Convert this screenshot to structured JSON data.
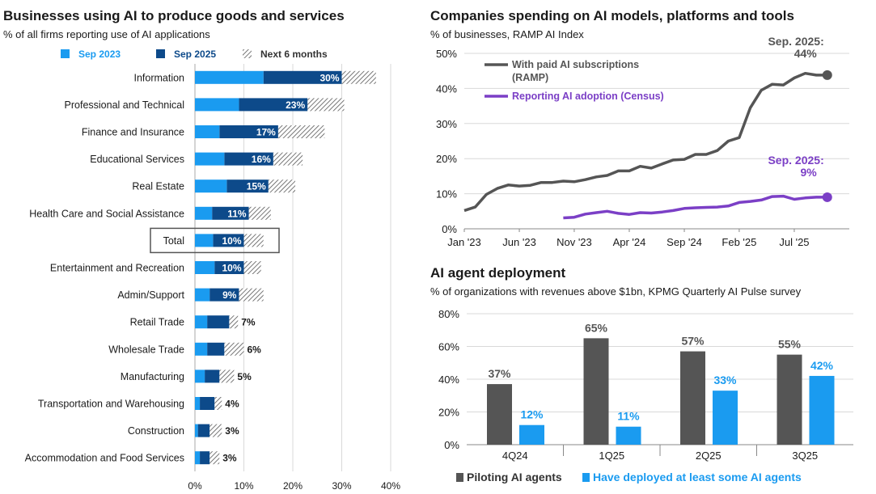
{
  "colors": {
    "sep2023": "#1a9bf0",
    "sep2025": "#0d4a8a",
    "next6": "#555555",
    "ramp": "#555555",
    "census": "#7b3fc6",
    "piloting": "#555555",
    "deployed": "#1a9bf0",
    "grid": "#d9d9d9",
    "total_box": "#555555"
  },
  "left": {
    "title": "Businesses using AI to produce goods and services",
    "subtitle": "% of all firms reporting use of AI applications"
  },
  "right_top": {
    "title": "Companies spending on AI models, platforms and tools",
    "subtitle": "% of businesses, RAMP AI Index"
  },
  "right_bottom": {
    "title": "AI agent deployment",
    "subtitle": "% of organizations with revenues above $1bn, KPMG Quarterly AI Pulse survey"
  },
  "chart_data": [
    {
      "type": "bar",
      "orientation": "horizontal",
      "title": "Businesses using AI to produce goods and services",
      "subtitle": "% of all firms reporting use of AI applications",
      "categories": [
        "Information",
        "Professional and Technical",
        "Finance and Insurance",
        "Educational Services",
        "Real Estate",
        "Health Care and Social Assistance",
        "Total",
        "Entertainment and Recreation",
        "Admin/Support",
        "Retail Trade",
        "Wholesale Trade",
        "Manufacturing",
        "Transportation and Warehousing",
        "Construction",
        "Accommodation and Food Services"
      ],
      "series": [
        {
          "name": "Sep 2023",
          "values": [
            14,
            9,
            5,
            6,
            6.5,
            3.5,
            3.7,
            4,
            3,
            2.5,
            2.5,
            2,
            1,
            0.6,
            1
          ]
        },
        {
          "name": "Sep 2025",
          "values": [
            30,
            23,
            17,
            16,
            15,
            11,
            10,
            10,
            9,
            7,
            6,
            5,
            4,
            3,
            3
          ]
        },
        {
          "name": "Next 6 months",
          "values": [
            37,
            30.5,
            26.5,
            22,
            20.5,
            15.5,
            14,
            13.5,
            14,
            8.8,
            10,
            8,
            5.5,
            5.5,
            5
          ]
        }
      ],
      "data_labels": [
        "30%",
        "23%",
        "17%",
        "16%",
        "15%",
        "11%",
        "10%",
        "10%",
        "9%",
        "7%",
        "6%",
        "5%",
        "4%",
        "3%",
        "3%"
      ],
      "highlighted_category": "Total",
      "xlim": [
        0,
        40
      ],
      "xticks": [
        0,
        10,
        20,
        30,
        40
      ],
      "xtick_labels": [
        "0%",
        "10%",
        "20%",
        "30%",
        "40%"
      ],
      "legend": "top",
      "grid": "vertical"
    },
    {
      "type": "line",
      "title": "Companies spending on AI models, platforms and tools",
      "subtitle": "% of businesses, RAMP AI Index",
      "x_range": [
        2023.0,
        2025.75
      ],
      "xticks": [
        2023.0,
        2023.417,
        2023.833,
        2024.25,
        2024.667,
        2025.083,
        2025.5
      ],
      "xtick_labels": [
        "Jan '23",
        "Jun '23",
        "Nov '23",
        "Apr '24",
        "Sep '24",
        "Feb '25",
        "Jul '25"
      ],
      "ylim": [
        0,
        50
      ],
      "yticks": [
        0,
        10,
        20,
        30,
        40,
        50
      ],
      "ytick_labels": [
        "0%",
        "10%",
        "20%",
        "30%",
        "40%",
        "50%"
      ],
      "grid": "horizontal",
      "series": [
        {
          "name": "With paid AI subscriptions (RAMP)",
          "legend_lines": [
            "With paid AI subscriptions",
            "(RAMP)"
          ],
          "x": [
            2023.0,
            2023.083,
            2023.167,
            2023.25,
            2023.333,
            2023.417,
            2023.5,
            2023.583,
            2023.667,
            2023.75,
            2023.833,
            2023.917,
            2024.0,
            2024.083,
            2024.167,
            2024.25,
            2024.333,
            2024.417,
            2024.5,
            2024.583,
            2024.667,
            2024.75,
            2024.833,
            2024.917,
            2025.0,
            2025.083,
            2025.167,
            2025.25,
            2025.333,
            2025.417,
            2025.5,
            2025.583,
            2025.667,
            2025.75
          ],
          "values": [
            5.2,
            6.2,
            9.8,
            11.5,
            12.5,
            12.2,
            12.4,
            13.2,
            13.2,
            13.6,
            13.4,
            14.0,
            14.8,
            15.2,
            16.5,
            16.5,
            17.8,
            17.3,
            18.5,
            19.6,
            19.8,
            21.2,
            21.2,
            22.3,
            25.0,
            26.0,
            34.5,
            39.5,
            41.2,
            41.0,
            43.0,
            44.3,
            43.8,
            43.8
          ],
          "annotation": [
            "Sep. 2025:",
            "44%"
          ]
        },
        {
          "name": "Reporting AI adoption (Census)",
          "x": [
            2023.75,
            2023.833,
            2023.917,
            2024.0,
            2024.083,
            2024.167,
            2024.25,
            2024.333,
            2024.417,
            2024.5,
            2024.583,
            2024.667,
            2024.75,
            2024.833,
            2024.917,
            2025.0,
            2025.083,
            2025.167,
            2025.25,
            2025.333,
            2025.417,
            2025.5,
            2025.583,
            2025.667,
            2025.75
          ],
          "values": [
            3.1,
            3.3,
            4.2,
            4.6,
            5.0,
            4.4,
            4.1,
            4.6,
            4.5,
            4.8,
            5.2,
            5.8,
            6.0,
            6.1,
            6.2,
            6.5,
            7.5,
            7.8,
            8.2,
            9.2,
            9.3,
            8.4,
            8.8,
            9.0,
            9.0
          ],
          "annotation": [
            "Sep. 2025:",
            "9%"
          ]
        }
      ]
    },
    {
      "type": "bar",
      "title": "AI agent deployment",
      "subtitle": "% of organizations with revenues above $1bn, KPMG Quarterly AI Pulse survey",
      "categories": [
        "4Q24",
        "1Q25",
        "2Q25",
        "3Q25"
      ],
      "series": [
        {
          "name": "Piloting AI agents",
          "values": [
            37,
            65,
            57,
            55
          ],
          "labels": [
            "37%",
            "65%",
            "57%",
            "55%"
          ]
        },
        {
          "name": "Have deployed at least some AI agents",
          "values": [
            12,
            11,
            33,
            42
          ],
          "labels": [
            "12%",
            "11%",
            "33%",
            "42%"
          ]
        }
      ],
      "ylim": [
        0,
        80
      ],
      "yticks": [
        0,
        20,
        40,
        60,
        80
      ],
      "ytick_labels": [
        "0%",
        "20%",
        "40%",
        "60%",
        "80%"
      ],
      "grid": "horizontal",
      "legend": "bottom"
    }
  ]
}
